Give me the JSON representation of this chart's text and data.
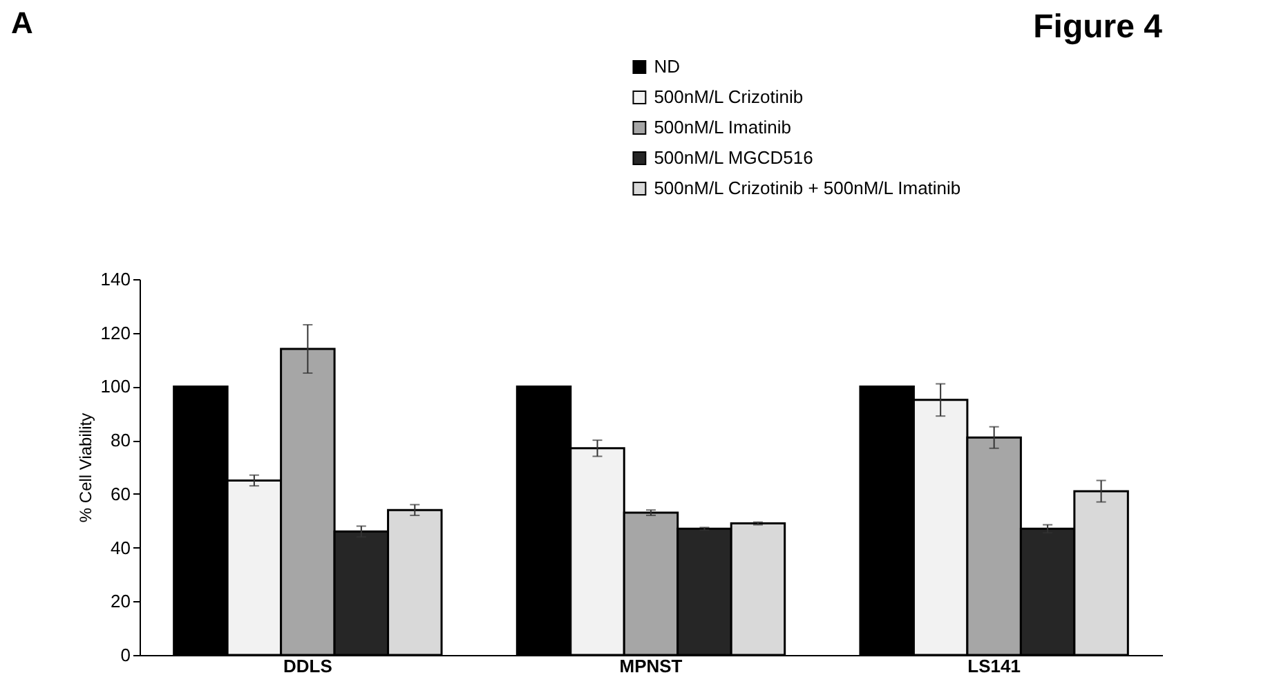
{
  "chart_data": {
    "type": "bar",
    "title": "Figure 4",
    "annotations": [
      "A"
    ],
    "ylabel": "% Cell Viability",
    "categories": [
      "DDLS",
      "MPNST",
      "LS141"
    ],
    "series": [
      {
        "name": "ND",
        "color": "#000000",
        "values": [
          100,
          100,
          100
        ],
        "errors": [
          null,
          null,
          null
        ]
      },
      {
        "name": "500nM/L Crizotinib",
        "color": "#f2f2f2",
        "values": [
          65,
          77,
          95
        ],
        "errors": [
          2,
          3,
          6
        ]
      },
      {
        "name": "500nM/L Imatinib",
        "color": "#a6a6a6",
        "values": [
          114,
          53,
          81
        ],
        "errors": [
          9,
          1,
          4
        ]
      },
      {
        "name": "500nM/L MGCD516",
        "color": "#262626",
        "values": [
          46,
          47,
          47
        ],
        "errors": [
          2,
          0.5,
          1.5
        ]
      },
      {
        "name": "500nM/L Crizotinib + 500nM/L Imatinib",
        "color": "#d9d9d9",
        "values": [
          54,
          49,
          61
        ],
        "errors": [
          2,
          0.5,
          4
        ]
      }
    ],
    "ylim": [
      0,
      140
    ],
    "yticks": [
      0,
      20,
      40,
      60,
      80,
      100,
      120,
      140
    ],
    "grid": false,
    "legend": "top right"
  }
}
